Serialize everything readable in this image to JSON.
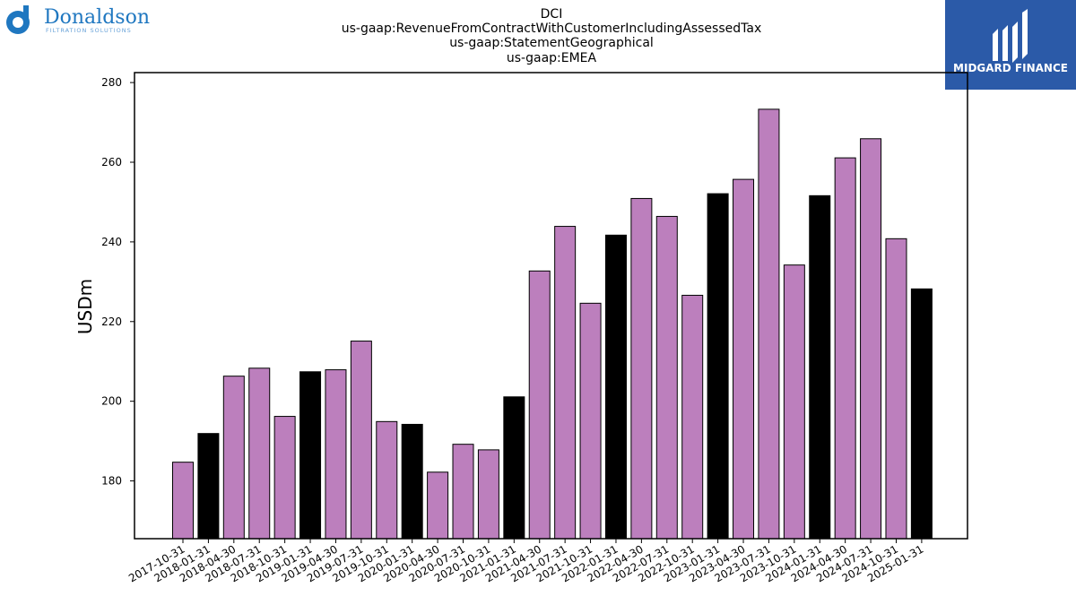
{
  "branding": {
    "left_logo_text": "Donaldson",
    "left_logo_subtext": "FILTRATION SOLUTIONS",
    "right_logo_text": "MIDGARD FINANCE"
  },
  "chart_data": {
    "type": "bar",
    "title_lines": [
      "DCI",
      "us-gaap:RevenueFromContractWithCustomerIncludingAssessedTax",
      "us-gaap:StatementGeographical",
      "us-gaap:EMEA"
    ],
    "ylabel": "USDm",
    "ylim": [
      165.5,
      282.5
    ],
    "yticks": [
      180,
      200,
      220,
      240,
      260,
      280
    ],
    "grid": false,
    "colors": {
      "quarter": "#bc7fbd",
      "fiscal_q2": "#000000"
    },
    "categories": [
      "2017-10-31",
      "2018-01-31",
      "2018-04-30",
      "2018-07-31",
      "2018-10-31",
      "2019-01-31",
      "2019-04-30",
      "2019-07-31",
      "2019-10-31",
      "2020-01-31",
      "2020-04-30",
      "2020-07-31",
      "2020-10-31",
      "2021-01-31",
      "2021-04-30",
      "2021-07-31",
      "2021-10-31",
      "2022-01-31",
      "2022-04-30",
      "2022-07-31",
      "2022-10-31",
      "2023-01-31",
      "2023-04-30",
      "2023-07-31",
      "2023-10-31",
      "2024-01-31",
      "2024-04-30",
      "2024-07-31",
      "2024-10-31",
      "2025-01-31"
    ],
    "values": [
      184.7,
      191.9,
      206.3,
      208.3,
      196.2,
      207.4,
      207.9,
      215.1,
      194.9,
      194.2,
      182.2,
      189.2,
      187.8,
      201.1,
      232.7,
      243.9,
      224.6,
      241.7,
      250.9,
      246.4,
      226.6,
      252.1,
      255.7,
      273.3,
      234.2,
      251.6,
      261.1,
      265.9,
      240.8,
      228.2
    ],
    "highlight": [
      false,
      true,
      false,
      false,
      false,
      true,
      false,
      false,
      false,
      true,
      false,
      false,
      false,
      true,
      false,
      false,
      false,
      true,
      false,
      false,
      false,
      true,
      false,
      false,
      false,
      true,
      false,
      false,
      false,
      true
    ]
  }
}
